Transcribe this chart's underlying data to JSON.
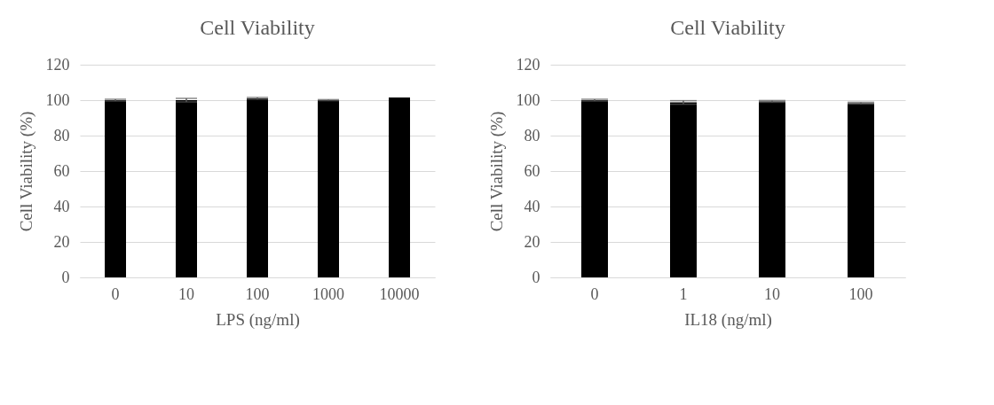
{
  "chart_data": [
    {
      "type": "bar",
      "title": "Cell Viability",
      "xlabel": "LPS (ng/ml)",
      "ylabel": "Cell Viability (%)",
      "categories": [
        "0",
        "10",
        "100",
        "1000",
        "10000"
      ],
      "values": [
        100,
        100,
        101,
        100,
        101.5
      ],
      "errors": [
        0.5,
        1,
        0.5,
        0.3,
        null
      ],
      "color": "#000000",
      "ylim": [
        0,
        120
      ],
      "yticks": [
        0,
        20,
        40,
        60,
        80,
        100,
        120
      ],
      "grid": "y"
    },
    {
      "type": "bar",
      "title": "Cell Viability",
      "xlabel": "IL18 (ng/ml)",
      "ylabel": "Cell Viability (%)",
      "categories": [
        "0",
        "1",
        "10",
        "100"
      ],
      "values": [
        100,
        98.7,
        99.3,
        98.3
      ],
      "errors": [
        0.5,
        1,
        0.5,
        0.5
      ],
      "color": "#000000",
      "ylim": [
        0,
        120
      ],
      "yticks": [
        0,
        20,
        40,
        60,
        80,
        100,
        120
      ],
      "grid": "y"
    }
  ]
}
